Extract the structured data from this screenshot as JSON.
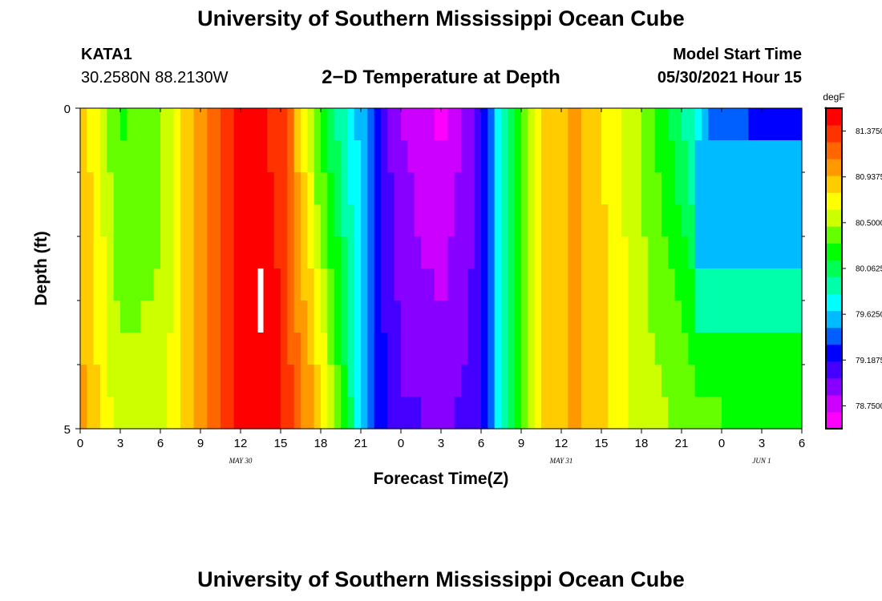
{
  "header": {
    "title": "University of Southern Mississippi Ocean Cube",
    "station": "KATA1",
    "coords": "30.2580N  88.2130W",
    "plot_title": "2−D Temperature at Depth",
    "model_start_label": "Model Start Time",
    "model_start_value": "05/30/2021 Hour 15"
  },
  "footer": {
    "title": "University of Southern Mississippi Ocean Cube"
  },
  "chart_data": {
    "type": "heatmap",
    "title": "2−D Temperature at Depth",
    "xlabel": "Forecast Time(Z)",
    "ylabel": "Depth (ft)",
    "units": "degF",
    "xlim": [
      0,
      54
    ],
    "ylim": [
      0,
      5
    ],
    "x_tick_labels": [
      "0",
      "3",
      "6",
      "9",
      "12",
      "15",
      "18",
      "21",
      "0",
      "3",
      "6",
      "9",
      "12",
      "15",
      "18",
      "21",
      "0",
      "3",
      "6"
    ],
    "date_labels": [
      {
        "text": "MAY 30",
        "hour": 12
      },
      {
        "text": "MAY 31",
        "hour": 36
      },
      {
        "text": "JUN 1",
        "hour": 51
      }
    ],
    "y_tick_labels": [
      {
        "value": 0,
        "label": "0"
      },
      {
        "value": 5,
        "label": "5"
      }
    ],
    "y_minor_ticks": [
      1,
      2,
      3,
      4
    ],
    "depth_levels": [
      0.25,
      0.75,
      1.25,
      1.75,
      2.25,
      2.75,
      3.25,
      3.75,
      4.25,
      4.75
    ],
    "colorbar": {
      "min": 78.5312,
      "max": 81.5938,
      "labels": [
        "81.37500",
        "80.93750",
        "80.50000",
        "80.06250",
        "79.62500",
        "79.18750",
        "78.75000"
      ],
      "colors": [
        "#ff00ff",
        "#cc00ff",
        "#8800ff",
        "#4400ff",
        "#0000ff",
        "#0060ff",
        "#00bbff",
        "#00ffff",
        "#00ffaa",
        "#00ff55",
        "#00ff00",
        "#66ff00",
        "#ccff00",
        "#ffff00",
        "#ffcc00",
        "#ff9900",
        "#ff6600",
        "#ff3300",
        "#ff0000"
      ]
    },
    "temperature_profile_surface": {
      "hours": [
        0,
        3,
        6,
        9,
        12,
        15,
        18,
        19.5,
        21,
        22.5,
        24,
        27,
        30,
        31,
        32,
        33,
        35,
        37,
        39,
        42,
        45,
        47,
        48,
        51,
        54
      ],
      "values": [
        80.94,
        80.25,
        80.45,
        81.06,
        81.5,
        81.4,
        80.2,
        79.9,
        79.6,
        79.1,
        78.85,
        78.62,
        79.05,
        79.6,
        80.0,
        80.4,
        80.85,
        81.0,
        80.8,
        80.45,
        80.0,
        79.45,
        79.35,
        79.25,
        79.15
      ]
    },
    "temperature_profile_bottom": {
      "hours": [
        0,
        3,
        6,
        9,
        12,
        15,
        18,
        19.5,
        21,
        22.5,
        24,
        27,
        30,
        31,
        32,
        33,
        35,
        37,
        39,
        42,
        45,
        47,
        48,
        51,
        54
      ],
      "values": [
        81.0,
        80.55,
        80.5,
        81.05,
        81.5,
        81.45,
        80.9,
        80.3,
        79.7,
        79.25,
        79.05,
        79.0,
        79.1,
        79.6,
        80.0,
        80.4,
        80.85,
        81.0,
        80.85,
        80.55,
        80.45,
        80.4,
        80.35,
        80.35,
        80.35
      ]
    },
    "deep_block_override": {
      "start_hour": 46,
      "rows": [
        {
          "depth_from": 0.5,
          "depth_to": 1.5,
          "value": 79.55
        },
        {
          "depth_from": 1.5,
          "depth_to": 2.5,
          "value": 79.65
        },
        {
          "depth_from": 2.5,
          "depth_to": 3.5,
          "value": 79.9
        },
        {
          "depth_from": 3.5,
          "depth_to": 4.5,
          "value": 80.15
        }
      ]
    },
    "marker": {
      "hour": 13.5,
      "depth_from": 2.5,
      "depth_to": 3.5
    }
  }
}
